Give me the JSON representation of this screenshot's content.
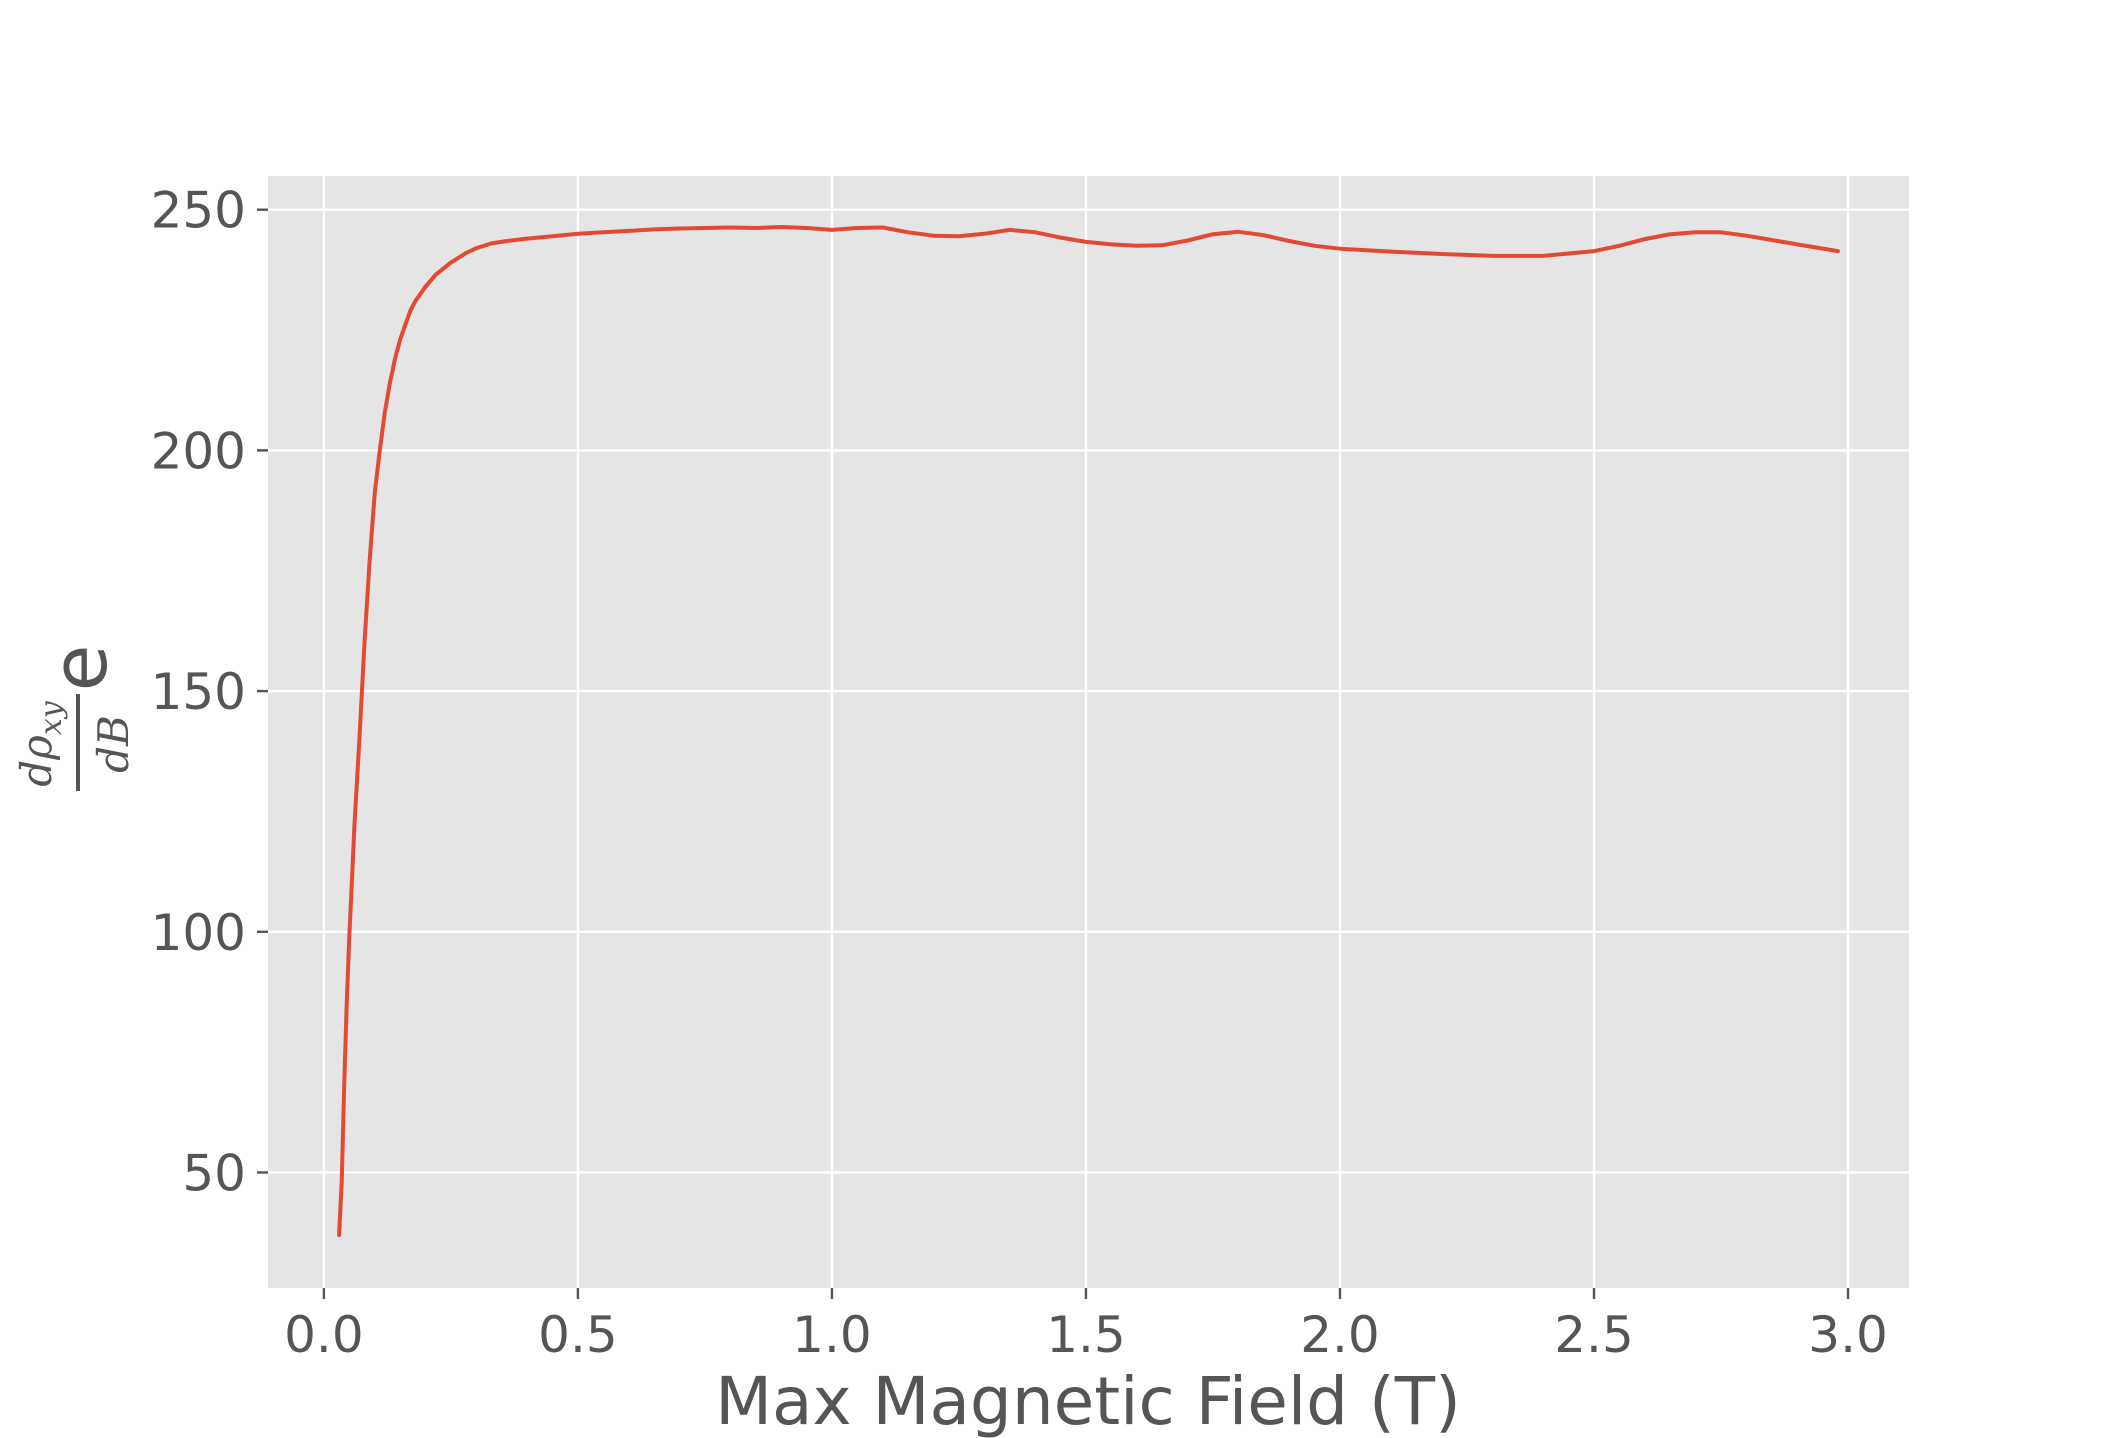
{
  "chart_data": {
    "type": "line",
    "title": "",
    "xlabel": "Max Magnetic Field (T)",
    "ylabel": {
      "numerator": "dρ",
      "numerator_subscript": "xy",
      "denominator": "dB",
      "suffix": "e"
    },
    "xlim": [
      -0.11,
      3.12
    ],
    "ylim": [
      26,
      257
    ],
    "xticks": [
      0.0,
      0.5,
      1.0,
      1.5,
      2.0,
      2.5,
      3.0
    ],
    "xtick_labels": [
      "0.0",
      "0.5",
      "1.0",
      "1.5",
      "2.0",
      "2.5",
      "3.0"
    ],
    "yticks": [
      50,
      100,
      150,
      200,
      250
    ],
    "ytick_labels": [
      "50",
      "100",
      "150",
      "200",
      "250"
    ],
    "grid": true,
    "background": "#e5e5e5",
    "grid_color": "#ffffff",
    "line_color": "#e24a33",
    "series": [
      {
        "x": [
          0.03,
          0.035,
          0.04,
          0.045,
          0.05,
          0.055,
          0.06,
          0.07,
          0.08,
          0.09,
          0.1,
          0.11,
          0.12,
          0.13,
          0.14,
          0.15,
          0.16,
          0.17,
          0.18,
          0.2,
          0.22,
          0.25,
          0.28,
          0.3,
          0.33,
          0.36,
          0.4,
          0.45,
          0.5,
          0.55,
          0.6,
          0.65,
          0.7,
          0.75,
          0.8,
          0.85,
          0.9,
          0.95,
          1.0,
          1.05,
          1.1,
          1.15,
          1.2,
          1.25,
          1.3,
          1.35,
          1.4,
          1.45,
          1.5,
          1.55,
          1.6,
          1.65,
          1.7,
          1.75,
          1.8,
          1.85,
          1.9,
          1.95,
          2.0,
          2.1,
          2.2,
          2.3,
          2.4,
          2.5,
          2.55,
          2.6,
          2.65,
          2.7,
          2.75,
          2.8,
          2.85,
          2.9,
          2.98
        ],
        "y": [
          37,
          48,
          68,
          85,
          99,
          110,
          122,
          140,
          160,
          177,
          191,
          200,
          208,
          214,
          219,
          223,
          226,
          229,
          231,
          234,
          236.5,
          239,
          241,
          242,
          243,
          243.5,
          244,
          244.5,
          245,
          245.3,
          245.6,
          245.9,
          246.1,
          246.2,
          246.3,
          246.2,
          246.4,
          246.2,
          245.8,
          246.2,
          246.3,
          245.3,
          244.6,
          244.5,
          245.0,
          245.8,
          245.3,
          244.2,
          243.3,
          242.8,
          242.5,
          242.6,
          243.6,
          244.9,
          245.4,
          244.7,
          243.5,
          242.5,
          241.9,
          241.3,
          240.8,
          240.4,
          240.4,
          241.4,
          242.5,
          243.9,
          244.9,
          245.3,
          245.3,
          244.6,
          243.7,
          242.8,
          241.4
        ]
      }
    ]
  }
}
